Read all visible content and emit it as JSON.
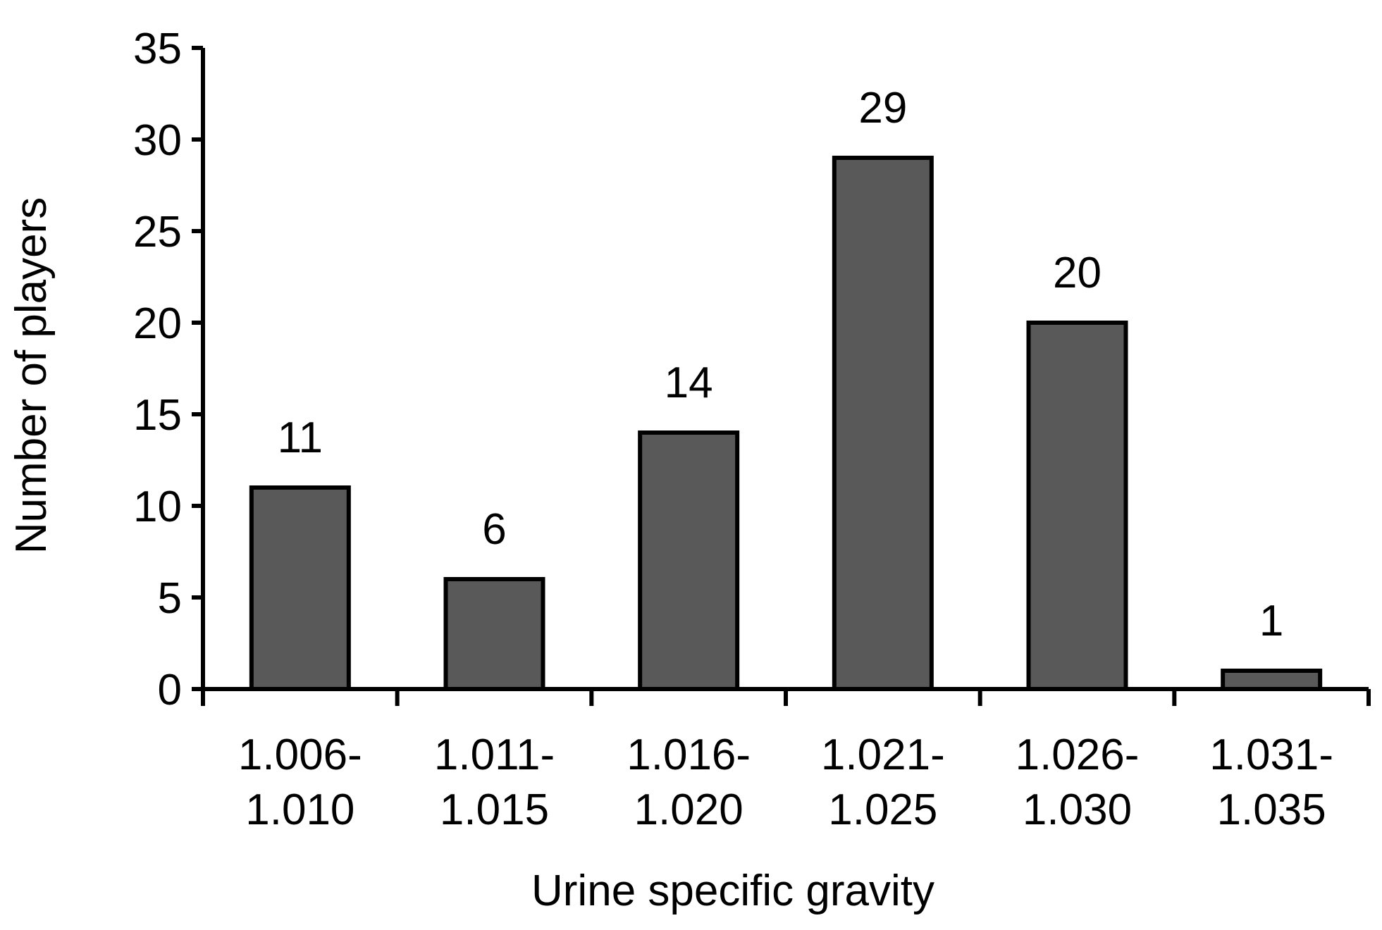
{
  "chart_data": {
    "type": "bar",
    "categories": [
      [
        "1.006-",
        "1.010"
      ],
      [
        "1.011-",
        "1.015"
      ],
      [
        "1.016-",
        "1.020"
      ],
      [
        "1.021-",
        "1.025"
      ],
      [
        "1.026-",
        "1.030"
      ],
      [
        "1.031-",
        "1.035"
      ]
    ],
    "values": [
      11,
      6,
      14,
      29,
      20,
      1
    ],
    "data_labels": [
      "11",
      "6",
      "14",
      "29",
      "20",
      "1"
    ],
    "title": "",
    "xlabel": "Urine specific gravity",
    "ylabel": "Number of players",
    "ylim": [
      0,
      35
    ],
    "yticks": [
      0,
      5,
      10,
      15,
      20,
      25,
      30,
      35
    ],
    "ytick_labels": [
      "0",
      "5",
      "10",
      "15",
      "20",
      "25",
      "30",
      "35"
    ],
    "grid": false,
    "legend": "none",
    "colors": {
      "bar": "#595959",
      "edge": "#000000"
    }
  }
}
